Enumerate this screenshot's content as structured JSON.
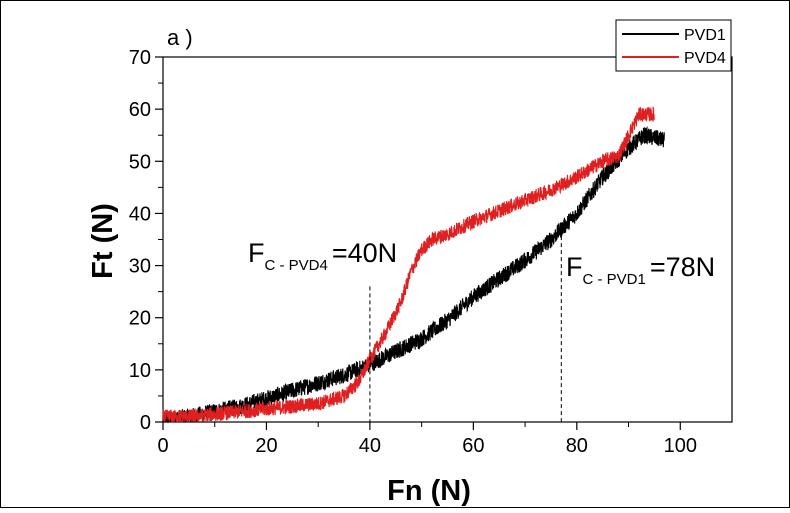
{
  "chart_data": {
    "type": "line",
    "panel_label": "a )",
    "xlabel": "Fn (N)",
    "ylabel": "Ft (N)",
    "xlim": [
      0,
      110
    ],
    "ylim": [
      0,
      70
    ],
    "xticks": [
      0,
      20,
      40,
      60,
      80,
      100
    ],
    "yticks": [
      0,
      10,
      20,
      30,
      40,
      50,
      60,
      70
    ],
    "grid": false,
    "legend_position": "top-right",
    "series": [
      {
        "name": "PVD1",
        "color": "#000000",
        "noise": 1.6,
        "x": [
          0,
          5,
          10,
          15,
          20,
          25,
          30,
          35,
          40,
          45,
          50,
          55,
          60,
          65,
          70,
          75,
          80,
          85,
          90,
          93,
          95,
          97
        ],
        "y": [
          0.5,
          1.0,
          2.0,
          3.0,
          4.5,
          6.0,
          7.5,
          9.0,
          11.0,
          13.5,
          16.0,
          19.5,
          24.0,
          27.5,
          31.0,
          35.0,
          40.0,
          47.0,
          52.5,
          55.0,
          54.5,
          54.0
        ]
      },
      {
        "name": "PVD4",
        "color": "#e02020",
        "noise": 1.4,
        "x": [
          0,
          5,
          10,
          15,
          20,
          25,
          30,
          35,
          38,
          40,
          43,
          46,
          48,
          50,
          52,
          55,
          60,
          65,
          70,
          75,
          80,
          85,
          88,
          90,
          92,
          95
        ],
        "y": [
          1.0,
          1.0,
          1.5,
          2.0,
          2.5,
          3.0,
          3.5,
          5.0,
          8.0,
          12.0,
          17.0,
          23.0,
          29.0,
          33.0,
          35.0,
          36.0,
          38.5,
          40.5,
          42.5,
          44.5,
          47.0,
          50.0,
          51.0,
          55.0,
          59.0,
          59.0
        ]
      }
    ],
    "annotations": [
      {
        "main": "F",
        "sub": "C - PVD4",
        "value": "=40N",
        "x": 40,
        "line_top": 26
      },
      {
        "main": "F",
        "sub": "C - PVD1",
        "value": "=78N",
        "x": 77,
        "line_top": 37
      }
    ]
  }
}
